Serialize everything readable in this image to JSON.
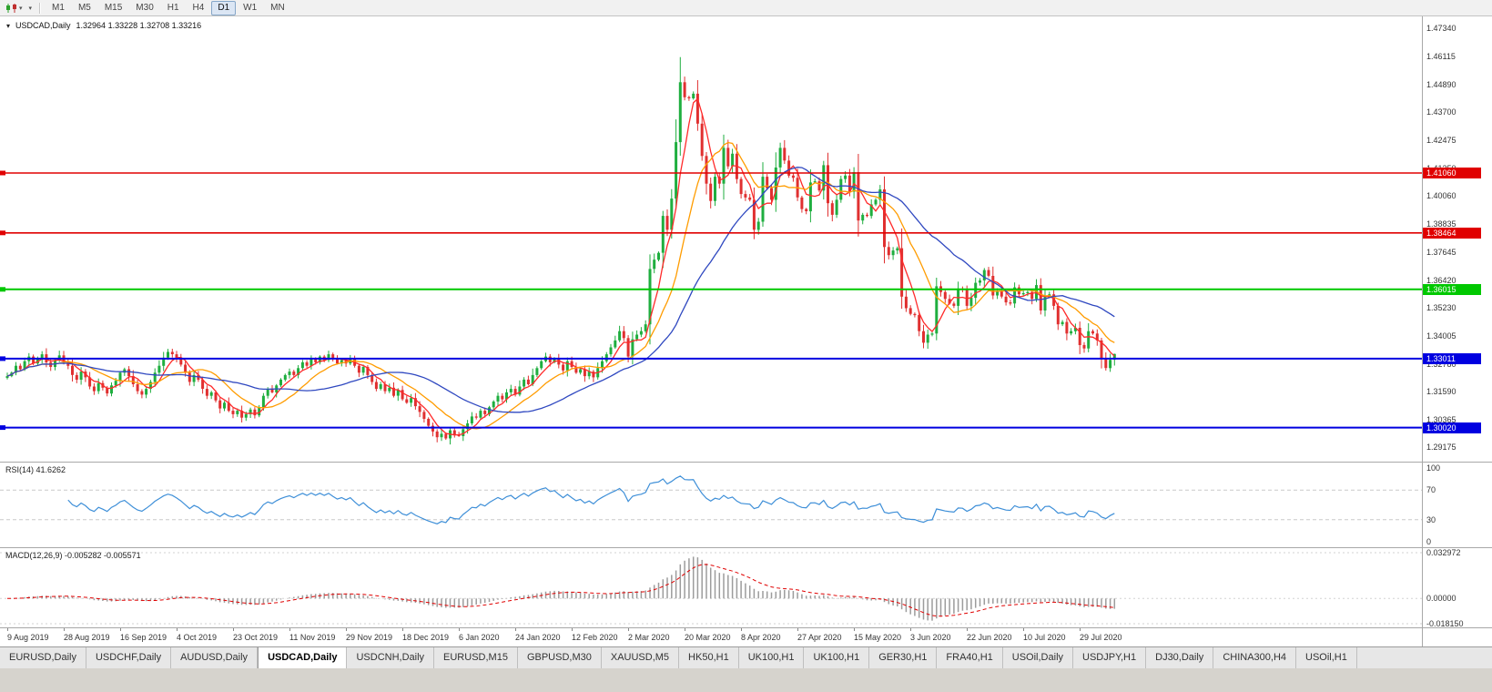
{
  "toolbar": {
    "timeframes": [
      "M1",
      "M5",
      "M15",
      "M30",
      "H1",
      "H4",
      "D1",
      "W1",
      "MN"
    ],
    "active_timeframe": "D1",
    "dropdown_glyph": "▾"
  },
  "legend": {
    "symbol": "USDCAD,Daily",
    "ohlc": "1.32964 1.33228 1.32708 1.33216"
  },
  "price_axis": {
    "labels": [
      "1.47340",
      "1.46115",
      "1.44890",
      "1.43700",
      "1.42475",
      "1.41250",
      "1.40060",
      "1.38835",
      "1.37645",
      "1.36420",
      "1.35230",
      "1.34005",
      "1.32780",
      "1.31590",
      "1.30365",
      "1.29175"
    ]
  },
  "hlines": [
    {
      "price": 1.4106,
      "label": "1.41060",
      "color": "#e00000",
      "width": 1.6
    },
    {
      "price": 1.38464,
      "label": "1.38464",
      "color": "#e00000",
      "width": 1.6
    },
    {
      "price": 1.36015,
      "label": "1.36015",
      "color": "#00c800",
      "width": 2
    },
    {
      "price": 1.33011,
      "label": "1.33011",
      "color": "#0000e0",
      "width": 2
    },
    {
      "price": 1.3002,
      "label": "1.30020",
      "color": "#0000e0",
      "width": 2
    }
  ],
  "chart_data": {
    "type": "candlestick",
    "symbol": "USDCAD",
    "timeframe": "Daily",
    "title": "USDCAD,Daily 1.32964 1.33228 1.32708 1.33216",
    "price_range": {
      "top": 1.4734,
      "bottom": 1.29175
    },
    "x_labels": [
      "9 Aug 2019",
      "28 Aug 2019",
      "16 Sep 2019",
      "4 Oct 2019",
      "23 Oct 2019",
      "11 Nov 2019",
      "29 Nov 2019",
      "18 Dec 2019",
      "6 Jan 2020",
      "24 Jan 2020",
      "12 Feb 2020",
      "2 Mar 2020",
      "20 Mar 2020",
      "8 Apr 2020",
      "27 Apr 2020",
      "15 May 2020",
      "3 Jun 2020",
      "22 Jun 2020",
      "10 Jul 2020",
      "29 Jul 2020"
    ],
    "bars_per_label": 13,
    "up_color": "#1fae3f",
    "down_color": "#e03030",
    "closes": [
      1.3225,
      1.324,
      1.327,
      1.3255,
      1.329,
      1.331,
      1.328,
      1.33,
      1.332,
      1.3285,
      1.3265,
      1.3295,
      1.3315,
      1.329,
      1.327,
      1.323,
      1.321,
      1.3245,
      1.322,
      1.318,
      1.316,
      1.3195,
      1.3175,
      1.315,
      1.3185,
      1.3205,
      1.324,
      1.3255,
      1.3225,
      1.319,
      1.316,
      1.3145,
      1.317,
      1.32,
      1.324,
      1.327,
      1.3305,
      1.333,
      1.332,
      1.33,
      1.3275,
      1.324,
      1.32,
      1.323,
      1.321,
      1.317,
      1.314,
      1.3155,
      1.312,
      1.3085,
      1.311,
      1.3075,
      1.306,
      1.3075,
      1.3045,
      1.306,
      1.308,
      1.3055,
      1.309,
      1.314,
      1.317,
      1.3155,
      1.3185,
      1.321,
      1.323,
      1.3245,
      1.323,
      1.326,
      1.3285,
      1.327,
      1.33,
      1.3285,
      1.331,
      1.3295,
      1.332,
      1.33,
      1.328,
      1.3295,
      1.328,
      1.33,
      1.327,
      1.324,
      1.3265,
      1.323,
      1.32,
      1.317,
      1.319,
      1.316,
      1.3175,
      1.314,
      1.3165,
      1.3125,
      1.311,
      1.313,
      1.3095,
      1.307,
      1.304,
      1.301,
      1.2985,
      1.296,
      1.2975,
      1.2955,
      1.299,
      1.297,
      1.2965,
      1.2995,
      1.302,
      1.305,
      1.3045,
      1.3075,
      1.306,
      1.309,
      1.3115,
      1.314,
      1.3125,
      1.3155,
      1.317,
      1.3145,
      1.318,
      1.321,
      1.319,
      1.323,
      1.326,
      1.329,
      1.331,
      1.3285,
      1.33,
      1.3275,
      1.325,
      1.329,
      1.3265,
      1.324,
      1.3255,
      1.3225,
      1.3245,
      1.322,
      1.326,
      1.329,
      1.332,
      1.335,
      1.338,
      1.342,
      1.339,
      1.331,
      1.3385,
      1.3405,
      1.342,
      1.345,
      1.369,
      1.373,
      1.376,
      1.392,
      1.386,
      1.3995,
      1.424,
      1.45,
      1.4435,
      1.443,
      1.445,
      1.432,
      1.418,
      1.406,
      1.3985,
      1.409,
      1.406,
      1.4215,
      1.4135,
      1.419,
      1.408,
      1.4015,
      1.4,
      1.399,
      1.386,
      1.3895,
      1.409,
      1.404,
      1.399,
      1.413,
      1.4215,
      1.416,
      1.4095,
      1.4085,
      1.4,
      1.395,
      1.394,
      1.4065,
      1.407,
      1.403,
      1.414,
      1.3975,
      1.3925,
      1.399,
      1.408,
      1.4095,
      1.4025,
      1.411,
      1.39,
      1.3925,
      1.392,
      1.397,
      1.399,
      1.4035,
      1.3785,
      1.375,
      1.377,
      1.378,
      1.357,
      1.352,
      1.3495,
      1.349,
      1.342,
      1.337,
      1.3405,
      1.341,
      1.3615,
      1.359,
      1.356,
      1.354,
      1.353,
      1.3605,
      1.36,
      1.353,
      1.3565,
      1.363,
      1.364,
      1.3685,
      1.366,
      1.3575,
      1.3595,
      1.357,
      1.3545,
      1.354,
      1.361,
      1.358,
      1.3585,
      1.359,
      1.356,
      1.362,
      1.351,
      1.3575,
      1.358,
      1.353,
      1.345,
      1.346,
      1.341,
      1.342,
      1.3435,
      1.336,
      1.3345,
      1.342,
      1.341,
      1.338,
      1.33,
      1.326,
      1.3296,
      1.3322
    ],
    "moving_averages": [
      {
        "period": 5,
        "color": "#ff2a2a"
      },
      {
        "period": 13,
        "color": "#ff9c00"
      },
      {
        "period": 30,
        "color": "#2f48c0"
      }
    ]
  },
  "rsi": {
    "label": "RSI(14) 41.6262",
    "value": "41.6262",
    "line_color": "#3e8fd8",
    "axis_labels": [
      "100",
      "70",
      "30",
      "0"
    ],
    "upper_level": 70,
    "lower_level": 30
  },
  "macd": {
    "label": "MACD(12,26,9) -0.005282 -0.005571",
    "values": "-0.005282 -0.005571",
    "axis_labels": [
      "0.032972",
      "0.00000",
      "-0.018150"
    ],
    "max": 0.032972,
    "min": -0.01815,
    "histogram_color": "#9c9c9c",
    "signal_color": "#e00000"
  },
  "tabs": {
    "active_index": 3,
    "items": [
      "EURUSD,Daily",
      "USDCHF,Daily",
      "AUDUSD,Daily",
      "USDCAD,Daily",
      "USDCNH,Daily",
      "EURUSD,M15",
      "GBPUSD,M30",
      "XAUUSD,M5",
      "HK50,H1",
      "UK100,H1",
      "UK100,H1",
      "GER30,H1",
      "FRA40,H1",
      "USOil,Daily",
      "USDJPY,H1",
      "DJ30,Daily",
      "CHINA300,H4",
      "USOil,H1"
    ]
  }
}
